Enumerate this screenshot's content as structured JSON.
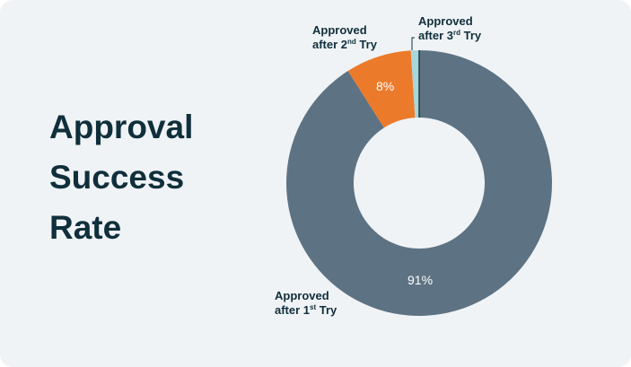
{
  "title_lines": [
    "Approval",
    "Success",
    "Rate"
  ],
  "chart_data": {
    "type": "pie",
    "donut": true,
    "title": "Approval Success Rate",
    "slices": [
      {
        "label": "Approved after 1st Try",
        "value": 91,
        "data_label": "91%",
        "color": "#5d7383"
      },
      {
        "label": "Approved after 2nd Try",
        "value": 8,
        "data_label": "8%",
        "color": "#ec7a2b"
      },
      {
        "label": "Approved after 3rd Try",
        "value": 1,
        "data_label": "",
        "color": "#a9d6d8"
      }
    ],
    "labels": {
      "first": {
        "line1": "Approved",
        "pre": "after 1",
        "sup": "st",
        "post": " Try"
      },
      "second": {
        "line1": "Approved",
        "pre": "after 2",
        "sup": "nd",
        "post": " Try"
      },
      "third": {
        "line1": "Approved",
        "pre": "after 3",
        "sup": "rd",
        "post": " Try"
      }
    }
  }
}
